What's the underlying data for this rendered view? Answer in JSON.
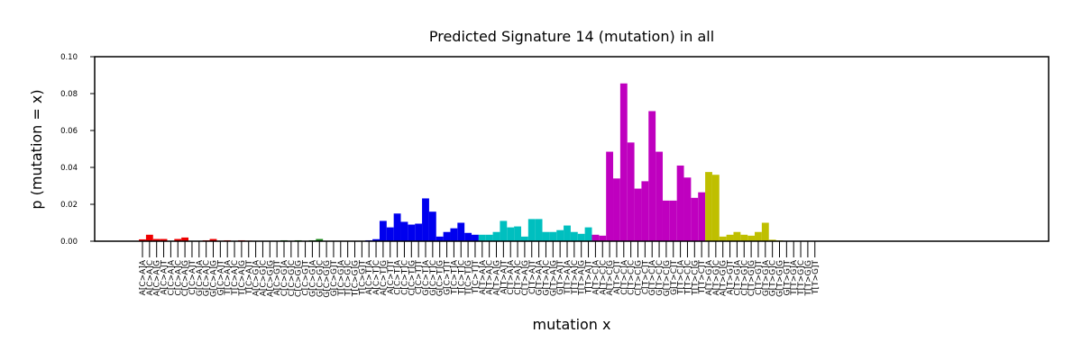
{
  "chart_data": {
    "type": "bar",
    "title": "Predicted Signature 14 (mutation) in all",
    "xlabel": "mutation x",
    "ylabel": "p (mutation = x)",
    "ylim": [
      0,
      0.1
    ],
    "yticks": [
      "0.00",
      "0.02",
      "0.04",
      "0.06",
      "0.08",
      "0.10"
    ],
    "grid": false,
    "categories": [
      "A[C>A]A",
      "A[C>A]C",
      "A[C>A]G",
      "A[C>A]T",
      "C[C>A]A",
      "C[C>A]C",
      "C[C>A]G",
      "C[C>A]T",
      "G[C>A]A",
      "G[C>A]C",
      "G[C>A]G",
      "G[C>A]T",
      "T[C>A]A",
      "T[C>A]C",
      "T[C>A]G",
      "T[C>A]T",
      "A[C>G]A",
      "A[C>G]C",
      "A[C>G]G",
      "A[C>G]T",
      "C[C>G]A",
      "C[C>G]C",
      "C[C>G]G",
      "C[C>G]T",
      "G[C>G]A",
      "G[C>G]C",
      "G[C>G]G",
      "G[C>G]T",
      "T[C>G]A",
      "T[C>G]C",
      "T[C>G]G",
      "T[C>G]T",
      "A[C>T]A",
      "A[C>T]C",
      "A[C>T]G",
      "A[C>T]T",
      "C[C>T]A",
      "C[C>T]C",
      "C[C>T]G",
      "C[C>T]T",
      "G[C>T]A",
      "G[C>T]C",
      "G[C>T]G",
      "G[C>T]T",
      "T[C>T]A",
      "T[C>T]C",
      "T[C>T]G",
      "T[C>T]T",
      "A[T>A]A",
      "A[T>A]C",
      "A[T>A]G",
      "A[T>A]T",
      "C[T>A]A",
      "C[T>A]C",
      "C[T>A]G",
      "C[T>A]T",
      "G[T>A]A",
      "G[T>A]C",
      "G[T>A]G",
      "G[T>A]T",
      "T[T>A]A",
      "T[T>A]C",
      "T[T>A]G",
      "T[T>A]T",
      "A[T>C]A",
      "A[T>C]C",
      "A[T>C]G",
      "A[T>C]T",
      "C[T>C]A",
      "C[T>C]C",
      "C[T>C]G",
      "C[T>C]T",
      "G[T>C]A",
      "G[T>C]C",
      "G[T>C]G",
      "G[T>C]T",
      "T[T>C]A",
      "T[T>C]C",
      "T[T>C]G",
      "T[T>C]T",
      "A[T>G]A",
      "A[T>G]C",
      "A[T>G]G",
      "A[T>G]T",
      "C[T>G]A",
      "C[T>G]C",
      "C[T>G]G",
      "C[T>G]T",
      "G[T>G]A",
      "G[T>G]C",
      "G[T>G]G",
      "G[T>G]T",
      "T[T>G]A",
      "T[T>G]C",
      "T[T>G]G",
      "T[T>G]T"
    ],
    "values": [
      0.001,
      0.0035,
      0.0012,
      0.0012,
      0.0002,
      0.0012,
      0.002,
      0.0002,
      0.0002,
      0.0005,
      0.0012,
      0.0003,
      0.0005,
      0.0002,
      0.0005,
      0.0003,
      0.0002,
      0.0002,
      0.0002,
      0.0002,
      0.0005,
      0.0002,
      0.0005,
      0.0002,
      0.0005,
      0.0012,
      0.0002,
      0.0002,
      0.0002,
      0.0002,
      0.0002,
      0.0002,
      0.0005,
      0.0011,
      0.011,
      0.0075,
      0.015,
      0.0105,
      0.009,
      0.0095,
      0.0232,
      0.016,
      0.0025,
      0.005,
      0.007,
      0.01,
      0.0045,
      0.0035,
      0.0035,
      0.0035,
      0.005,
      0.011,
      0.0075,
      0.008,
      0.0025,
      0.012,
      0.012,
      0.005,
      0.005,
      0.006,
      0.0085,
      0.005,
      0.004,
      0.0075,
      0.0035,
      0.003,
      0.0485,
      0.034,
      0.0855,
      0.0535,
      0.0285,
      0.0325,
      0.0705,
      0.0485,
      0.022,
      0.022,
      0.041,
      0.0345,
      0.0235,
      0.0265,
      0.0375,
      0.036,
      0.0025,
      0.0035,
      0.005,
      0.0035,
      0.003,
      0.005,
      0.01,
      0.0008,
      0.0004,
      0.0002,
      0.0001,
      0.0001,
      0.0001,
      0.0002
    ],
    "group_colors": [
      "#ee0000",
      "#1e8b1e",
      "#0000ee",
      "#00bfbf",
      "#bf00bf",
      "#bfbf00"
    ]
  }
}
